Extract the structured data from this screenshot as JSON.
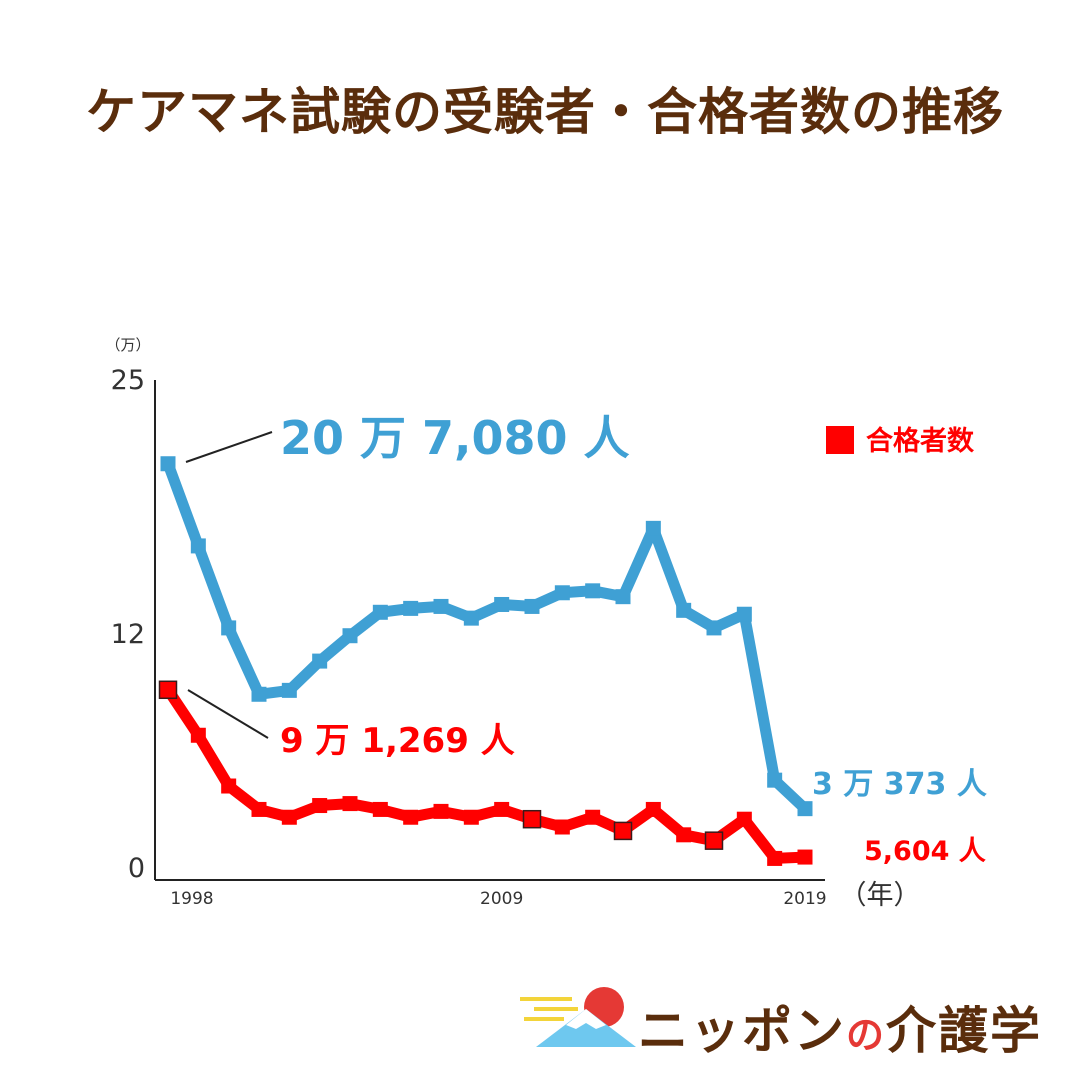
{
  "title": "ケアマネ試験の受験者・合格者数の推移",
  "brand": {
    "name_part1": "ニッポン",
    "name_no": "の",
    "name_part2": "介護学"
  },
  "colors": {
    "examinees": "#3fa0d4",
    "passers": "#ff0000",
    "title": "#5a2d0c"
  },
  "chart_data": {
    "type": "line",
    "y_unit_label": "（万）",
    "x_unit_label": "（年）",
    "ylim": [
      0,
      25
    ],
    "y_ticks": [
      {
        "value": 0,
        "label": "0"
      },
      {
        "value": 12,
        "label": "12"
      },
      {
        "value": 25,
        "label": "25"
      }
    ],
    "x_range": [
      1998,
      2019
    ],
    "x_ticks": [
      {
        "value": 1998,
        "label": "1998"
      },
      {
        "value": 2009,
        "label": "2009"
      },
      {
        "value": 2019,
        "label": "2019"
      }
    ],
    "x": [
      1998,
      1999,
      2000,
      2001,
      2002,
      2003,
      2004,
      2005,
      2006,
      2007,
      2008,
      2009,
      2010,
      2011,
      2012,
      2013,
      2014,
      2015,
      2016,
      2017,
      2018,
      2019
    ],
    "series": [
      {
        "name": "",
        "color": "#3fa0d4",
        "values": [
          20.71,
          16.5,
          12.3,
          8.9,
          9.1,
          10.6,
          11.9,
          13.1,
          13.3,
          13.4,
          12.8,
          13.5,
          13.4,
          14.1,
          14.2,
          13.9,
          17.4,
          13.2,
          12.3,
          13.0,
          4.5,
          3.04
        ]
      },
      {
        "name": "合格者数",
        "color": "#ff0000",
        "values": [
          9.13,
          6.8,
          4.2,
          3.0,
          2.6,
          3.2,
          3.3,
          3.0,
          2.6,
          2.9,
          2.6,
          3.0,
          2.5,
          2.1,
          2.6,
          1.9,
          3.0,
          1.7,
          1.4,
          2.5,
          0.49,
          0.56
        ]
      }
    ],
    "legend": {
      "label": "合格者数",
      "placement": "top-right"
    },
    "annotations": [
      {
        "text": "20 万 7,080 人",
        "series": 0,
        "x": 1998,
        "color": "#3fa0d4"
      },
      {
        "text": "9 万 1,269 人",
        "series": 1,
        "x": 1998,
        "color": "#ff0000"
      },
      {
        "text": "3 万 373 人",
        "series": 0,
        "x": 2019,
        "color": "#3fa0d4"
      },
      {
        "text": "5,604 人",
        "series": 1,
        "x": 2019,
        "color": "#ff0000"
      }
    ],
    "open_markers": [
      1998,
      2010,
      2013,
      2016
    ]
  }
}
